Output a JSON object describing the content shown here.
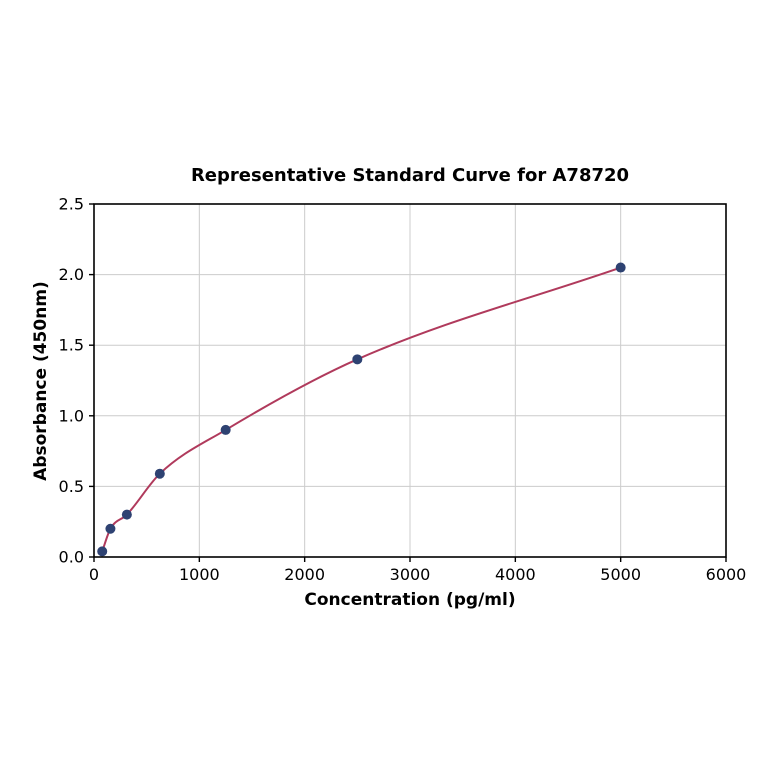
{
  "chart_data": {
    "type": "scatter",
    "title": "Representative Standard Curve for A78720",
    "xlabel": "Concentration (pg/ml)",
    "ylabel": "Absorbance (450nm)",
    "xlim": [
      0,
      6000
    ],
    "ylim": [
      0,
      2.5
    ],
    "xticks": [
      0,
      1000,
      2000,
      3000,
      4000,
      5000,
      6000
    ],
    "xtick_labels": [
      "0",
      "1000",
      "2000",
      "3000",
      "4000",
      "5000",
      "6000"
    ],
    "yticks": [
      0,
      0.5,
      1.0,
      1.5,
      2.0,
      2.5
    ],
    "ytick_labels": [
      "0.0",
      "0.5",
      "1.0",
      "1.5",
      "2.0",
      "2.5"
    ],
    "grid": true,
    "legend_position": "none",
    "colors": {
      "points": "#2e4272",
      "curve": "#b03a5c",
      "grid": "#cccccc",
      "axis": "#000000",
      "background": "#ffffff"
    },
    "series": [
      {
        "name": "standards",
        "x": [
          78,
          156,
          312,
          625,
          1250,
          2500,
          5000
        ],
        "y": [
          0.04,
          0.2,
          0.3,
          0.59,
          0.9,
          1.4,
          2.05
        ]
      }
    ]
  }
}
